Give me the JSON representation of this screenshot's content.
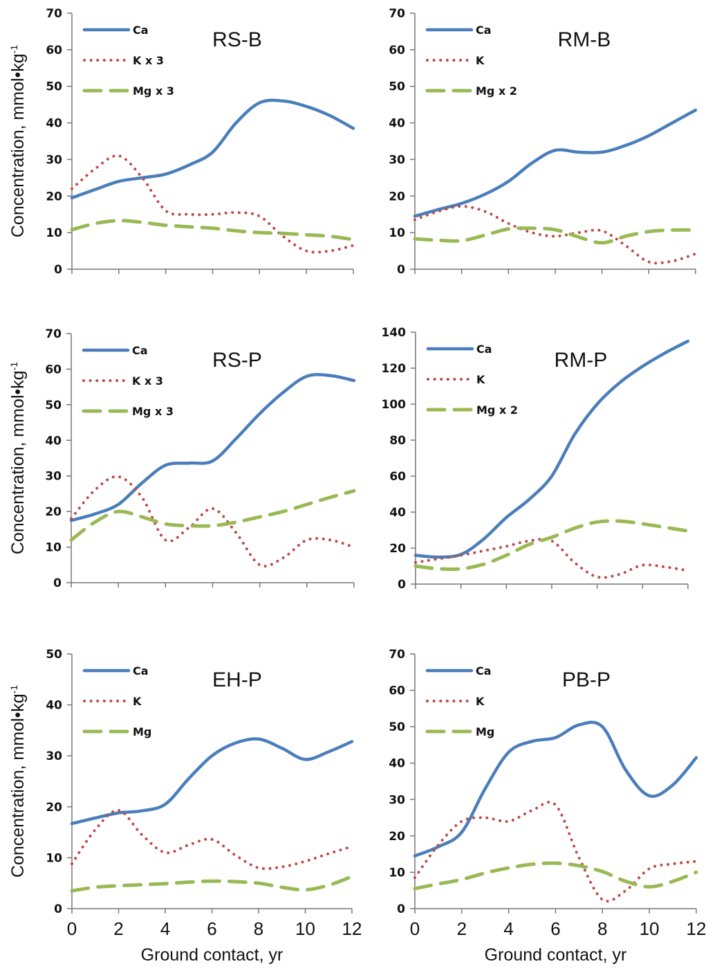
{
  "chart_data": [
    {
      "type": "line",
      "title": "RS-B",
      "ylabel": "Concentration, mmol•kg",
      "ylabel_sup": "-1",
      "xlabel": "",
      "ylim": [
        0,
        70
      ],
      "yticks": [
        0,
        10,
        20,
        30,
        40,
        50,
        60,
        70
      ],
      "xlim": [
        0,
        12
      ],
      "xticks": [
        0,
        2,
        4,
        6,
        8,
        10,
        12
      ],
      "show_xtick_labels": false,
      "legend_position": "top-left",
      "x": [
        0,
        1,
        2,
        3,
        4,
        5,
        6,
        7,
        8,
        9,
        10,
        11,
        12
      ],
      "series": [
        {
          "name": "Ca",
          "style": "solid",
          "color": "#4a7ebb",
          "values": [
            19.5,
            21.8,
            24,
            25,
            26,
            28.5,
            32,
            40,
            45.5,
            46,
            44.5,
            42,
            38.5
          ]
        },
        {
          "name": "K x 3",
          "style": "dotted",
          "color": "#be4b48",
          "values": [
            22,
            27.5,
            31,
            25,
            16,
            15,
            15,
            15.5,
            14.5,
            9,
            5,
            5,
            6.5
          ]
        },
        {
          "name": "Mg x 3",
          "style": "dashed",
          "color": "#98b954",
          "values": [
            10.8,
            12.5,
            13.3,
            12.8,
            12,
            11.6,
            11.2,
            10.5,
            10,
            9.8,
            9.4,
            9,
            8.1
          ]
        }
      ]
    },
    {
      "type": "line",
      "title": "RM-B",
      "ylabel": "",
      "xlabel": "",
      "ylim": [
        0,
        70
      ],
      "yticks": [
        0,
        10,
        20,
        30,
        40,
        50,
        60,
        70
      ],
      "xlim": [
        0,
        12
      ],
      "xticks": [
        0,
        2,
        4,
        6,
        8,
        10,
        12
      ],
      "show_xtick_labels": false,
      "legend_position": "top-left",
      "x": [
        0,
        1,
        2,
        3,
        4,
        5,
        6,
        7,
        8,
        9,
        10,
        11,
        12
      ],
      "series": [
        {
          "name": "Ca",
          "style": "solid",
          "color": "#4a7ebb",
          "values": [
            14.5,
            16.3,
            18,
            20.5,
            24,
            29,
            32.5,
            32,
            32,
            33.8,
            36.5,
            40,
            43.5
          ]
        },
        {
          "name": "K",
          "style": "dotted",
          "color": "#be4b48",
          "values": [
            13.5,
            15.8,
            17.2,
            15.8,
            12.5,
            10,
            9,
            10,
            10.5,
            6.5,
            2,
            2.2,
            4.2
          ]
        },
        {
          "name": "Mg x 2",
          "style": "dashed",
          "color": "#98b954",
          "values": [
            8.3,
            7.9,
            7.8,
            9.3,
            11,
            11.2,
            10.8,
            8.8,
            7.2,
            9,
            10.3,
            10.7,
            10.7
          ]
        }
      ]
    },
    {
      "type": "line",
      "title": "RS-P",
      "ylabel": "Concentration, mmol•kg",
      "ylabel_sup": "-1",
      "xlabel": "",
      "ylim": [
        0,
        70
      ],
      "yticks": [
        0,
        10,
        20,
        30,
        40,
        50,
        60,
        70
      ],
      "xlim": [
        0,
        12
      ],
      "xticks": [
        0,
        2,
        4,
        6,
        8,
        10,
        12
      ],
      "show_xtick_labels": false,
      "legend_position": "top-left",
      "x": [
        0,
        1,
        2,
        3,
        4,
        5,
        6,
        7,
        8,
        9,
        10,
        11,
        12
      ],
      "series": [
        {
          "name": "Ca",
          "style": "solid",
          "color": "#4a7ebb",
          "values": [
            17.5,
            19.3,
            22,
            28,
            33,
            33.6,
            34.2,
            40.5,
            47.5,
            53.5,
            58,
            58.2,
            56.8
          ]
        },
        {
          "name": "K x 3",
          "style": "dotted",
          "color": "#be4b48",
          "values": [
            18,
            26,
            29.8,
            24,
            12,
            15.5,
            20.8,
            14,
            5,
            7,
            12,
            12,
            10
          ]
        },
        {
          "name": "Mg x 3",
          "style": "dashed",
          "color": "#98b954",
          "values": [
            12,
            17,
            20,
            18.5,
            16.5,
            16,
            16,
            17,
            18.5,
            20,
            22,
            24,
            25.8
          ]
        }
      ]
    },
    {
      "type": "line",
      "title": "RM-P",
      "ylabel": "",
      "xlabel": "",
      "ylim": [
        0,
        140
      ],
      "yticks": [
        0,
        20,
        40,
        60,
        80,
        100,
        120,
        140
      ],
      "xlim": [
        0,
        12
      ],
      "xticks": [
        0,
        2,
        4,
        6,
        8,
        10,
        12
      ],
      "show_xtick_labels": false,
      "legend_position": "top-left",
      "x": [
        0,
        1,
        2,
        3,
        4,
        5,
        6,
        7,
        8,
        9,
        10,
        11,
        12
      ],
      "series": [
        {
          "name": "Ca",
          "style": "solid",
          "color": "#4a7ebb",
          "values": [
            16,
            15,
            16.5,
            25,
            37,
            47,
            60,
            83,
            100,
            112,
            121,
            128.5,
            135
          ]
        },
        {
          "name": "K",
          "style": "dotted",
          "color": "#be4b48",
          "values": [
            12,
            14,
            16,
            18.5,
            21,
            24,
            24,
            12,
            4,
            5.5,
            10.5,
            9.5,
            7.5
          ]
        },
        {
          "name": "Mg x 2",
          "style": "dashed",
          "color": "#98b954",
          "values": [
            10,
            8.5,
            8.5,
            11,
            16,
            22,
            26,
            31,
            34.5,
            35,
            33.5,
            31.5,
            29.5
          ]
        }
      ]
    },
    {
      "type": "line",
      "title": "EH-P",
      "ylabel": "Concentration, mmol•kg",
      "ylabel_sup": "-1",
      "xlabel": "Ground contact, yr",
      "ylim": [
        0,
        50
      ],
      "yticks": [
        0,
        10,
        20,
        30,
        40,
        50
      ],
      "xlim": [
        0,
        12
      ],
      "xticks": [
        0,
        2,
        4,
        6,
        8,
        10,
        12
      ],
      "show_xtick_labels": true,
      "legend_position": "top-left",
      "x": [
        0,
        1,
        2,
        3,
        4,
        5,
        6,
        7,
        8,
        9,
        10,
        11,
        12
      ],
      "series": [
        {
          "name": "Ca",
          "style": "solid",
          "color": "#4a7ebb",
          "values": [
            16.7,
            17.8,
            18.8,
            19.2,
            20.5,
            25.5,
            30,
            32.5,
            33.3,
            31.5,
            29.3,
            30.8,
            32.8
          ]
        },
        {
          "name": "K",
          "style": "dotted",
          "color": "#be4b48",
          "values": [
            8.8,
            15.5,
            19.3,
            14.5,
            11,
            12.5,
            13.6,
            10.5,
            8,
            8.2,
            9.3,
            10.8,
            12.2
          ]
        },
        {
          "name": "Mg",
          "style": "dashed",
          "color": "#98b954",
          "values": [
            3.5,
            4.2,
            4.5,
            4.7,
            4.9,
            5.2,
            5.4,
            5.3,
            5,
            4.2,
            3.7,
            4.6,
            6.3
          ]
        }
      ]
    },
    {
      "type": "line",
      "title": "PB-P",
      "ylabel": "",
      "xlabel": "Ground contact, yr",
      "ylim": [
        0,
        70
      ],
      "yticks": [
        0,
        10,
        20,
        30,
        40,
        50,
        60,
        70
      ],
      "xlim": [
        0,
        12
      ],
      "xticks": [
        0,
        2,
        4,
        6,
        8,
        10,
        12
      ],
      "show_xtick_labels": true,
      "legend_position": "top-left",
      "x": [
        0,
        1,
        2,
        3,
        4,
        5,
        6,
        7,
        8,
        9,
        10,
        11,
        12
      ],
      "series": [
        {
          "name": "Ca",
          "style": "solid",
          "color": "#4a7ebb",
          "values": [
            14.5,
            17,
            21,
            33,
            43,
            46,
            47,
            50.5,
            50,
            38,
            31,
            34,
            41.5
          ]
        },
        {
          "name": "K",
          "style": "dotted",
          "color": "#be4b48",
          "values": [
            8.5,
            17.5,
            24,
            25,
            24,
            27,
            28.5,
            14,
            2.5,
            5,
            11,
            12.3,
            13
          ]
        },
        {
          "name": "Mg",
          "style": "dashed",
          "color": "#98b954",
          "values": [
            5.5,
            6.8,
            8,
            9.8,
            11.2,
            12.2,
            12.5,
            11.8,
            10.2,
            7.5,
            6,
            7.5,
            10
          ]
        }
      ]
    }
  ]
}
